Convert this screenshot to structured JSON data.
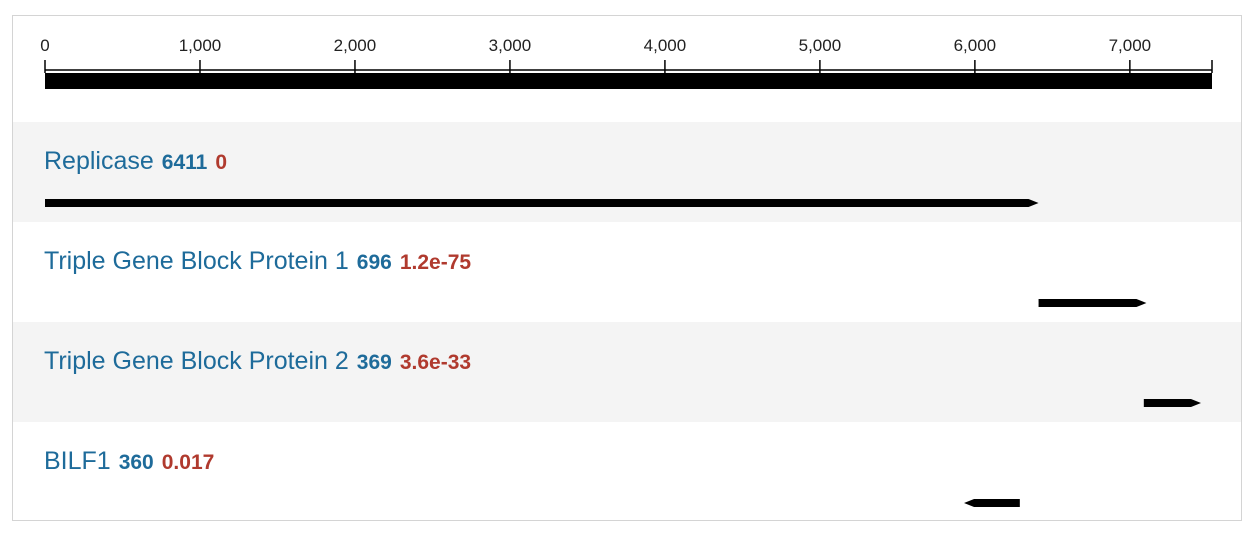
{
  "axis": {
    "max": 7530,
    "ticks": [
      0,
      1000,
      2000,
      3000,
      4000,
      5000,
      6000,
      7000
    ],
    "tick_labels": [
      "0",
      "1,000",
      "2,000",
      "3,000",
      "4,000",
      "5,000",
      "6,000",
      "7,000"
    ]
  },
  "features": [
    {
      "name": "Replicase",
      "score": "6411",
      "evalue": "0",
      "start": 0,
      "end": 6411,
      "strand": "+"
    },
    {
      "name": "Triple Gene Block Protein 1",
      "score": "696",
      "evalue": "1.2e-75",
      "start": 6411,
      "end": 7107,
      "strand": "+"
    },
    {
      "name": "Triple Gene Block Protein 2",
      "score": "369",
      "evalue": "3.6e-33",
      "start": 7090,
      "end": 7459,
      "strand": "+"
    },
    {
      "name": "BILF1",
      "score": "360",
      "evalue": "0.017",
      "start": 5930,
      "end": 6290,
      "strand": "-"
    }
  ],
  "colors": {
    "name": "#1e6b9a",
    "score": "#1e6b9a",
    "evalue": "#b03a2e",
    "track": "#000000",
    "row_shade": "#f4f4f4"
  }
}
